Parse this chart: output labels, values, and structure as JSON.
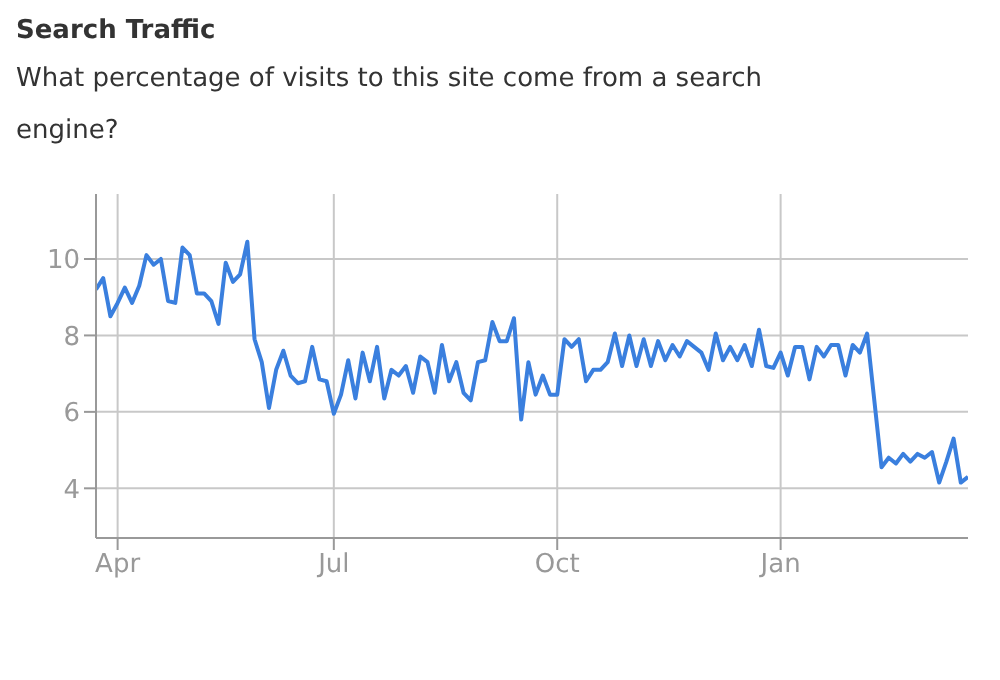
{
  "chart_data": {
    "type": "line",
    "title": "Search Traffic",
    "subtitle": "What percentage of visits to this site come from a search engine?",
    "categories": [
      null,
      null,
      null,
      "Apr",
      null,
      null,
      null,
      null,
      null,
      null,
      null,
      null,
      null,
      null,
      null,
      null,
      null,
      null,
      null,
      null,
      null,
      null,
      null,
      null,
      null,
      null,
      null,
      null,
      null,
      null,
      null,
      null,
      null,
      "Jul",
      null,
      null,
      null,
      null,
      null,
      null,
      null,
      null,
      null,
      null,
      null,
      null,
      null,
      null,
      null,
      null,
      null,
      null,
      null,
      null,
      null,
      null,
      null,
      null,
      null,
      null,
      null,
      null,
      null,
      null,
      "Oct",
      null,
      null,
      null,
      null,
      null,
      null,
      null,
      null,
      null,
      null,
      null,
      null,
      null,
      null,
      null,
      null,
      null,
      null,
      null,
      null,
      null,
      null,
      null,
      null,
      null,
      null,
      null,
      null,
      null,
      null,
      "Jan",
      null,
      null,
      null,
      null,
      null,
      null,
      null,
      null,
      null,
      null,
      null,
      null,
      null,
      null,
      null,
      null,
      null,
      null,
      null,
      null,
      null,
      null,
      null,
      null,
      null,
      null
    ],
    "series": [
      {
        "color": "#3a7fde",
        "values": [
          9.2,
          9.5,
          8.5,
          8.85,
          9.25,
          8.85,
          9.3,
          10.1,
          9.85,
          10.0,
          8.9,
          8.85,
          10.3,
          10.1,
          9.1,
          9.1,
          8.9,
          8.3,
          9.9,
          9.4,
          9.6,
          10.45,
          7.9,
          7.3,
          6.1,
          7.1,
          7.6,
          6.95,
          6.75,
          6.8,
          7.7,
          6.85,
          6.8,
          5.95,
          6.45,
          7.35,
          6.35,
          7.55,
          6.8,
          7.7,
          6.35,
          7.1,
          6.95,
          7.2,
          6.5,
          7.45,
          7.3,
          6.5,
          7.75,
          6.8,
          7.3,
          6.5,
          6.3,
          7.3,
          7.35,
          8.35,
          7.85,
          7.85,
          8.45,
          5.8,
          7.3,
          6.45,
          6.95,
          6.45,
          6.45,
          7.9,
          7.7,
          7.9,
          6.8,
          7.1,
          7.1,
          7.3,
          8.05,
          7.2,
          8.0,
          7.2,
          7.9,
          7.2,
          7.85,
          7.35,
          7.75,
          7.45,
          7.85,
          7.7,
          7.55,
          7.1,
          8.05,
          7.35,
          7.7,
          7.35,
          7.75,
          7.2,
          8.15,
          7.2,
          7.15,
          7.55,
          6.95,
          7.7,
          7.7,
          6.85,
          7.7,
          7.45,
          7.75,
          7.75,
          6.95,
          7.75,
          7.55,
          8.05,
          6.3,
          4.55,
          4.8,
          4.65,
          4.9,
          4.7,
          4.9,
          4.8,
          4.95,
          4.15,
          4.7,
          5.3,
          4.15,
          4.3
        ]
      }
    ],
    "ylim": [
      2.7,
      11.7
    ],
    "yticks": [
      4,
      6,
      8,
      10
    ],
    "grid": true,
    "legend": false,
    "marker": "none",
    "line_style": "solid"
  }
}
